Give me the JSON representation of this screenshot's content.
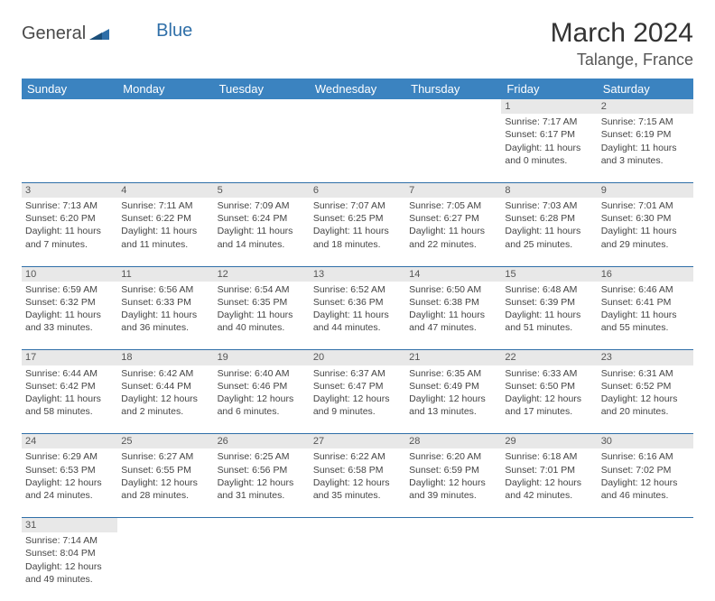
{
  "logo": {
    "word1": "General",
    "word2": "Blue"
  },
  "title": {
    "month_year": "March 2024",
    "location": "Talange, France"
  },
  "colors": {
    "header_bg": "#3b83c0",
    "header_text": "#ffffff",
    "daynum_bg": "#e8e8e8",
    "row_border": "#2f6fa8",
    "logo_gray": "#4a4a4a",
    "logo_blue": "#2f6fa8"
  },
  "day_headers": [
    "Sunday",
    "Monday",
    "Tuesday",
    "Wednesday",
    "Thursday",
    "Friday",
    "Saturday"
  ],
  "weeks": [
    [
      null,
      null,
      null,
      null,
      null,
      {
        "n": "1",
        "sunrise": "Sunrise: 7:17 AM",
        "sunset": "Sunset: 6:17 PM",
        "daylight": "Daylight: 11 hours and 0 minutes."
      },
      {
        "n": "2",
        "sunrise": "Sunrise: 7:15 AM",
        "sunset": "Sunset: 6:19 PM",
        "daylight": "Daylight: 11 hours and 3 minutes."
      }
    ],
    [
      {
        "n": "3",
        "sunrise": "Sunrise: 7:13 AM",
        "sunset": "Sunset: 6:20 PM",
        "daylight": "Daylight: 11 hours and 7 minutes."
      },
      {
        "n": "4",
        "sunrise": "Sunrise: 7:11 AM",
        "sunset": "Sunset: 6:22 PM",
        "daylight": "Daylight: 11 hours and 11 minutes."
      },
      {
        "n": "5",
        "sunrise": "Sunrise: 7:09 AM",
        "sunset": "Sunset: 6:24 PM",
        "daylight": "Daylight: 11 hours and 14 minutes."
      },
      {
        "n": "6",
        "sunrise": "Sunrise: 7:07 AM",
        "sunset": "Sunset: 6:25 PM",
        "daylight": "Daylight: 11 hours and 18 minutes."
      },
      {
        "n": "7",
        "sunrise": "Sunrise: 7:05 AM",
        "sunset": "Sunset: 6:27 PM",
        "daylight": "Daylight: 11 hours and 22 minutes."
      },
      {
        "n": "8",
        "sunrise": "Sunrise: 7:03 AM",
        "sunset": "Sunset: 6:28 PM",
        "daylight": "Daylight: 11 hours and 25 minutes."
      },
      {
        "n": "9",
        "sunrise": "Sunrise: 7:01 AM",
        "sunset": "Sunset: 6:30 PM",
        "daylight": "Daylight: 11 hours and 29 minutes."
      }
    ],
    [
      {
        "n": "10",
        "sunrise": "Sunrise: 6:59 AM",
        "sunset": "Sunset: 6:32 PM",
        "daylight": "Daylight: 11 hours and 33 minutes."
      },
      {
        "n": "11",
        "sunrise": "Sunrise: 6:56 AM",
        "sunset": "Sunset: 6:33 PM",
        "daylight": "Daylight: 11 hours and 36 minutes."
      },
      {
        "n": "12",
        "sunrise": "Sunrise: 6:54 AM",
        "sunset": "Sunset: 6:35 PM",
        "daylight": "Daylight: 11 hours and 40 minutes."
      },
      {
        "n": "13",
        "sunrise": "Sunrise: 6:52 AM",
        "sunset": "Sunset: 6:36 PM",
        "daylight": "Daylight: 11 hours and 44 minutes."
      },
      {
        "n": "14",
        "sunrise": "Sunrise: 6:50 AM",
        "sunset": "Sunset: 6:38 PM",
        "daylight": "Daylight: 11 hours and 47 minutes."
      },
      {
        "n": "15",
        "sunrise": "Sunrise: 6:48 AM",
        "sunset": "Sunset: 6:39 PM",
        "daylight": "Daylight: 11 hours and 51 minutes."
      },
      {
        "n": "16",
        "sunrise": "Sunrise: 6:46 AM",
        "sunset": "Sunset: 6:41 PM",
        "daylight": "Daylight: 11 hours and 55 minutes."
      }
    ],
    [
      {
        "n": "17",
        "sunrise": "Sunrise: 6:44 AM",
        "sunset": "Sunset: 6:42 PM",
        "daylight": "Daylight: 11 hours and 58 minutes."
      },
      {
        "n": "18",
        "sunrise": "Sunrise: 6:42 AM",
        "sunset": "Sunset: 6:44 PM",
        "daylight": "Daylight: 12 hours and 2 minutes."
      },
      {
        "n": "19",
        "sunrise": "Sunrise: 6:40 AM",
        "sunset": "Sunset: 6:46 PM",
        "daylight": "Daylight: 12 hours and 6 minutes."
      },
      {
        "n": "20",
        "sunrise": "Sunrise: 6:37 AM",
        "sunset": "Sunset: 6:47 PM",
        "daylight": "Daylight: 12 hours and 9 minutes."
      },
      {
        "n": "21",
        "sunrise": "Sunrise: 6:35 AM",
        "sunset": "Sunset: 6:49 PM",
        "daylight": "Daylight: 12 hours and 13 minutes."
      },
      {
        "n": "22",
        "sunrise": "Sunrise: 6:33 AM",
        "sunset": "Sunset: 6:50 PM",
        "daylight": "Daylight: 12 hours and 17 minutes."
      },
      {
        "n": "23",
        "sunrise": "Sunrise: 6:31 AM",
        "sunset": "Sunset: 6:52 PM",
        "daylight": "Daylight: 12 hours and 20 minutes."
      }
    ],
    [
      {
        "n": "24",
        "sunrise": "Sunrise: 6:29 AM",
        "sunset": "Sunset: 6:53 PM",
        "daylight": "Daylight: 12 hours and 24 minutes."
      },
      {
        "n": "25",
        "sunrise": "Sunrise: 6:27 AM",
        "sunset": "Sunset: 6:55 PM",
        "daylight": "Daylight: 12 hours and 28 minutes."
      },
      {
        "n": "26",
        "sunrise": "Sunrise: 6:25 AM",
        "sunset": "Sunset: 6:56 PM",
        "daylight": "Daylight: 12 hours and 31 minutes."
      },
      {
        "n": "27",
        "sunrise": "Sunrise: 6:22 AM",
        "sunset": "Sunset: 6:58 PM",
        "daylight": "Daylight: 12 hours and 35 minutes."
      },
      {
        "n": "28",
        "sunrise": "Sunrise: 6:20 AM",
        "sunset": "Sunset: 6:59 PM",
        "daylight": "Daylight: 12 hours and 39 minutes."
      },
      {
        "n": "29",
        "sunrise": "Sunrise: 6:18 AM",
        "sunset": "Sunset: 7:01 PM",
        "daylight": "Daylight: 12 hours and 42 minutes."
      },
      {
        "n": "30",
        "sunrise": "Sunrise: 6:16 AM",
        "sunset": "Sunset: 7:02 PM",
        "daylight": "Daylight: 12 hours and 46 minutes."
      }
    ],
    [
      {
        "n": "31",
        "sunrise": "Sunrise: 7:14 AM",
        "sunset": "Sunset: 8:04 PM",
        "daylight": "Daylight: 12 hours and 49 minutes."
      },
      null,
      null,
      null,
      null,
      null,
      null
    ]
  ]
}
